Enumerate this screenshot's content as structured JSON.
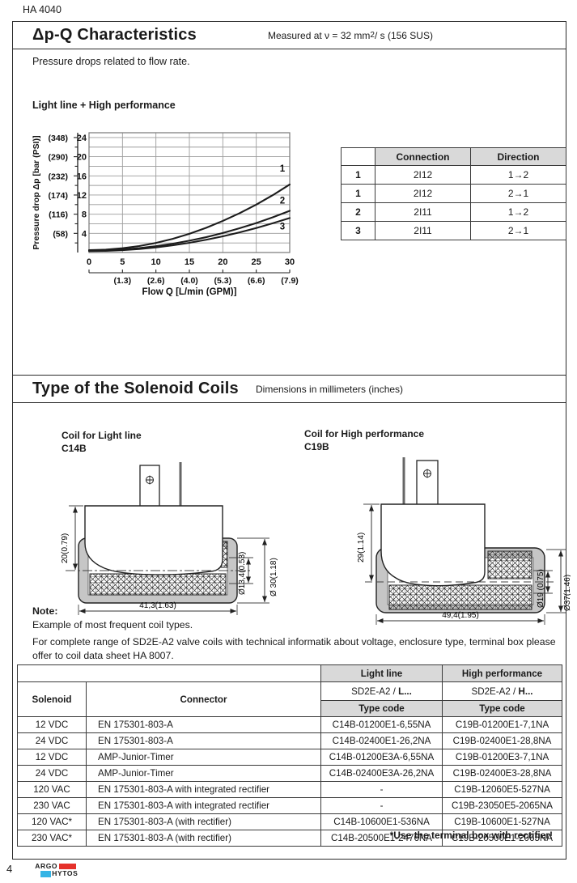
{
  "page": {
    "doc_code": "HA 4040",
    "page_number": "4",
    "brand_top": "ARGO",
    "brand_bottom": "HYTOS",
    "colors": {
      "logo_red": "#e5312b",
      "logo_blue": "#35b4e5",
      "table_header_grey": "#d9d9d9"
    }
  },
  "section1": {
    "title": "Δp-Q Characteristics",
    "measured_prefix": "Measured at  ν = 32 mm",
    "measured_sup": "2",
    "measured_suffix": "/ s (156 SUS)",
    "description": "Pressure drops related to flow rate.",
    "chart_title": "Light line  + High performance"
  },
  "chart_data": {
    "type": "line",
    "title": "Light line + High performance",
    "xlabel": "Flow Q [L/min (GPM)]",
    "ylabel": "Pressure drop Δp  [bar (PSI)]",
    "xlim": [
      0,
      30
    ],
    "ylim": [
      0,
      25
    ],
    "grid": true,
    "x_ticks": [
      0,
      5,
      10,
      15,
      20,
      25,
      30
    ],
    "x_ticks_gpm": [
      "(1.3)",
      "(2.6)",
      "(4.0)",
      "(5.3)",
      "(6.6)",
      "(7.9)"
    ],
    "y_ticks": [
      4,
      8,
      12,
      16,
      20,
      24
    ],
    "y_ticks_psi": [
      "(58)",
      "(116)",
      "(174)",
      "(232)",
      "(290)",
      "(348)"
    ],
    "x": [
      0,
      2.5,
      5,
      7.5,
      10,
      12.5,
      15,
      17.5,
      20,
      22.5,
      25,
      27.5,
      30
    ],
    "series": [
      {
        "name": "1",
        "label_at": [
          28.9,
          16.9
        ],
        "values": [
          0.5,
          0.6,
          0.9,
          1.35,
          2.0,
          2.85,
          3.9,
          5.15,
          6.6,
          8.2,
          10.0,
          12.0,
          14.2
        ]
      },
      {
        "name": "2",
        "label_at": [
          28.9,
          10.2
        ],
        "values": [
          0.4,
          0.46,
          0.63,
          0.92,
          1.32,
          1.84,
          2.47,
          3.2,
          4.08,
          5.06,
          6.15,
          7.37,
          8.7
        ]
      },
      {
        "name": "3",
        "label_at": [
          28.9,
          4.8
        ],
        "values": [
          0.3,
          0.35,
          0.49,
          0.73,
          1.07,
          1.5,
          2.03,
          2.66,
          3.38,
          4.2,
          5.11,
          6.12,
          7.2
        ]
      }
    ]
  },
  "connection_table": {
    "headers": [
      "",
      "Connection",
      "Direction"
    ],
    "rows": [
      [
        "1",
        "2I12",
        "1→2"
      ],
      [
        "1",
        "2I12",
        "2→1"
      ],
      [
        "2",
        "2I11",
        "1→2"
      ],
      [
        "3",
        "2I11",
        "2→1"
      ]
    ]
  },
  "section2": {
    "title": "Type of the Solenoid Coils",
    "subtitle": "Dimensions in millimeters (inches)",
    "coil_left": {
      "label_line1": "Coil for Light line",
      "label_line2": "C14B",
      "dims": {
        "height": "20(0.79)",
        "inner_dia": "Ø13,4(0.53)",
        "outer_dia": "Ø 30(1.18)",
        "width": "41,3(1.63)"
      }
    },
    "coil_right": {
      "label_line1": "Coil for High performance",
      "label_line2": "C19B",
      "dims": {
        "height": "29(1.14)",
        "inner_dia": "Ø19 (0.75)",
        "outer_dia": "Ø37(1.46)",
        "width": "49,4(1.95)"
      }
    }
  },
  "note": {
    "heading": "Note:",
    "line1": "Example of most frequent coil types.",
    "line2": "For complete range of SD2E-A2 valve coils with technical informatik about voltage, enclosure type, terminal box please offer to coil data sheet HA 8007."
  },
  "coil_table": {
    "group_headers": {
      "light": "Light line",
      "high": "High performance"
    },
    "type_headers": {
      "light_prefix": "SD2E-A2 / ",
      "light_bold": "L...",
      "high_prefix": "SD2E-A2 / ",
      "high_bold": "H..."
    },
    "type_code_label": "Type code",
    "col1": "Solenoid",
    "col2": "Connector",
    "rows": [
      [
        "12 VDC",
        "EN 175301-803-A",
        "C14B-01200E1-6,55NA",
        "C19B-01200E1-7,1NA"
      ],
      [
        "24 VDC",
        "EN 175301-803-A",
        "C14B-02400E1-26,2NA",
        "C19B-02400E1-28,8NA"
      ],
      [
        "12 VDC",
        "AMP-Junior-Timer",
        "C14B-01200E3A-6,55NA",
        "C19B-01200E3-7,1NA"
      ],
      [
        "24 VDC",
        "AMP-Junior-Timer",
        "C14B-02400E3A-26,2NA",
        "C19B-02400E3-28,8NA"
      ],
      [
        "120 VAC",
        "EN 175301-803-A with integrated rectifier",
        "-",
        "C19B-12060E5-527NA"
      ],
      [
        "230 VAC",
        "EN 175301-803-A with integrated rectifier",
        "-",
        "C19B-23050E5-2065NA"
      ],
      [
        "120 VAC*",
        "EN 175301-803-A (with rectifier)",
        "C14B-10600E1-536NA",
        "C19B-10600E1-527NA"
      ],
      [
        "230 VAC*",
        "EN 175301-803-A (with rectifier)",
        "C14B-20500E1-2476NA",
        "C19B-20500E1-2065NA"
      ]
    ],
    "footnote": "*Use the terminal box with rectifier!"
  }
}
